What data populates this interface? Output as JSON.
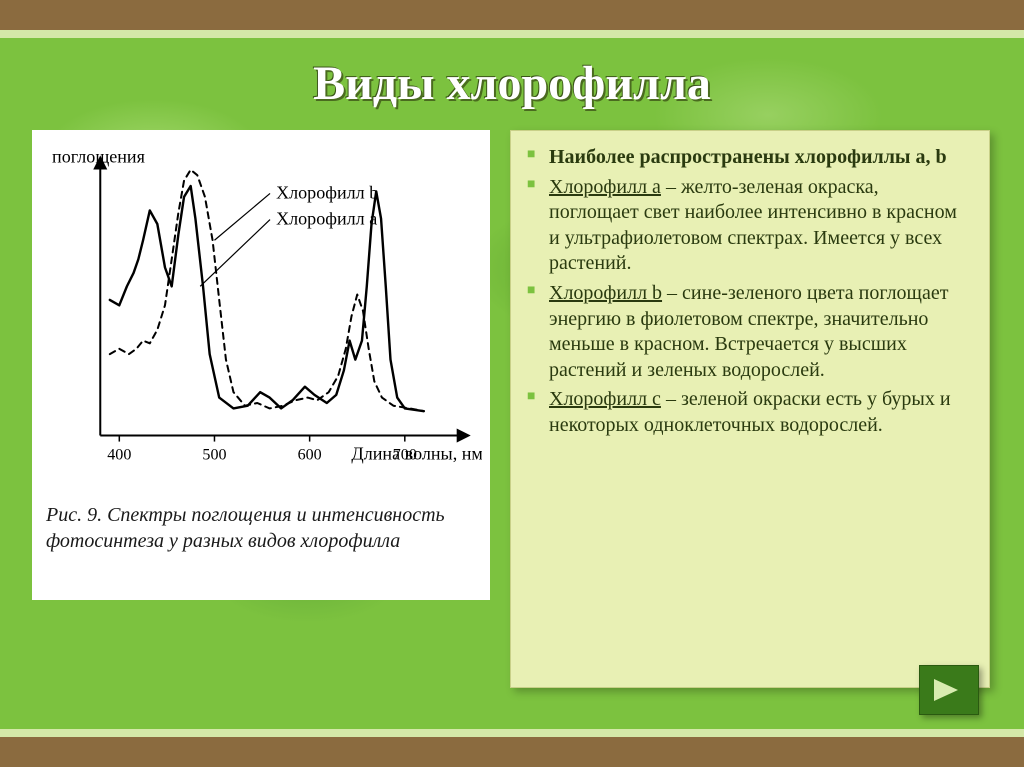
{
  "slide": {
    "title": "Виды хлорофилла",
    "bg_base": "#7cc23f",
    "band_color": "#8b6b3f",
    "band_accent": "#d4e8a8",
    "title_color": "#ffffff",
    "title_shadow": "#4a6b1f"
  },
  "chart": {
    "type": "line",
    "panel_bg": "#ffffff",
    "y_label": "поглощения",
    "x_label": "Длина волны, нм",
    "caption_prefix": "Рис. 9.",
    "caption_text": "Спектры поглощения и интенсивность фотосинтеза у разных видов хлорофилла",
    "stroke_color": "#000000",
    "line_width_solid": 2.4,
    "line_width_dash": 2.0,
    "dash_pattern": "6,5",
    "xlim": [
      380,
      760
    ],
    "ylim": [
      0,
      100
    ],
    "xticks": [
      400,
      500,
      600,
      700
    ],
    "series": [
      {
        "name": "Хлорофилл a",
        "label": "Хлорофилл a",
        "style": "solid",
        "leader_to_x": 485,
        "label_y_offset": 60,
        "points": [
          [
            390,
            50
          ],
          [
            400,
            48
          ],
          [
            408,
            55
          ],
          [
            415,
            60
          ],
          [
            420,
            65
          ],
          [
            425,
            72
          ],
          [
            432,
            83
          ],
          [
            440,
            78
          ],
          [
            448,
            62
          ],
          [
            455,
            55
          ],
          [
            462,
            74
          ],
          [
            468,
            88
          ],
          [
            475,
            92
          ],
          [
            480,
            80
          ],
          [
            488,
            55
          ],
          [
            495,
            30
          ],
          [
            505,
            14
          ],
          [
            520,
            10
          ],
          [
            535,
            11
          ],
          [
            548,
            16
          ],
          [
            558,
            14
          ],
          [
            570,
            10
          ],
          [
            582,
            13
          ],
          [
            595,
            18
          ],
          [
            605,
            15
          ],
          [
            618,
            12
          ],
          [
            628,
            15
          ],
          [
            636,
            24
          ],
          [
            642,
            35
          ],
          [
            648,
            28
          ],
          [
            655,
            35
          ],
          [
            660,
            55
          ],
          [
            665,
            78
          ],
          [
            670,
            90
          ],
          [
            675,
            80
          ],
          [
            680,
            55
          ],
          [
            685,
            28
          ],
          [
            692,
            14
          ],
          [
            700,
            10
          ],
          [
            720,
            9
          ]
        ]
      },
      {
        "name": "Хлорофилл b",
        "label": "Хлорофилл b",
        "style": "dashed",
        "leader_to_x": 500,
        "label_y_offset": 34,
        "points": [
          [
            390,
            30
          ],
          [
            400,
            32
          ],
          [
            410,
            30
          ],
          [
            418,
            32
          ],
          [
            425,
            35
          ],
          [
            432,
            34
          ],
          [
            440,
            39
          ],
          [
            448,
            48
          ],
          [
            455,
            65
          ],
          [
            462,
            82
          ],
          [
            468,
            94
          ],
          [
            475,
            98
          ],
          [
            482,
            96
          ],
          [
            490,
            88
          ],
          [
            498,
            72
          ],
          [
            505,
            50
          ],
          [
            512,
            28
          ],
          [
            520,
            16
          ],
          [
            532,
            11
          ],
          [
            545,
            12
          ],
          [
            558,
            10
          ],
          [
            572,
            11
          ],
          [
            585,
            13
          ],
          [
            598,
            14
          ],
          [
            608,
            13
          ],
          [
            620,
            16
          ],
          [
            630,
            22
          ],
          [
            638,
            32
          ],
          [
            644,
            44
          ],
          [
            650,
            52
          ],
          [
            656,
            46
          ],
          [
            662,
            32
          ],
          [
            668,
            20
          ],
          [
            676,
            14
          ],
          [
            688,
            11
          ],
          [
            705,
            10
          ],
          [
            720,
            9
          ]
        ]
      }
    ]
  },
  "text_panel": {
    "bg": "#e8f0b4",
    "border": "#c8d088",
    "text_color": "#2a3a0f",
    "bullet_color": "#7cc23f",
    "font_size_pt": 15,
    "items": [
      {
        "head_bold": "Наиболее распространены хлорофиллы a, b",
        "body": ""
      },
      {
        "head_ul": "Хлорофилл а",
        "body": " – желто-зеленая окраска, поглощает свет наиболее интенсивно в красном и ультрафиолетовом спектрах. Имеется у всех растений."
      },
      {
        "head_ul": "Хлорофилл b",
        "body": " – сине-зеленого цвета поглощает энергию в фиолетовом спектре, значительно меньше в красном. Встречается у высших растений и зеленых водорослей."
      },
      {
        "head_ul": "Хлорофилл с",
        "body": " – зеленой окраски есть у бурых и некоторых одноклеточных водорослей."
      }
    ]
  },
  "nav": {
    "btn_bg": "#3a7a1a",
    "btn_border": "#2a5a10",
    "arrow_color": "#d8ecb0"
  }
}
